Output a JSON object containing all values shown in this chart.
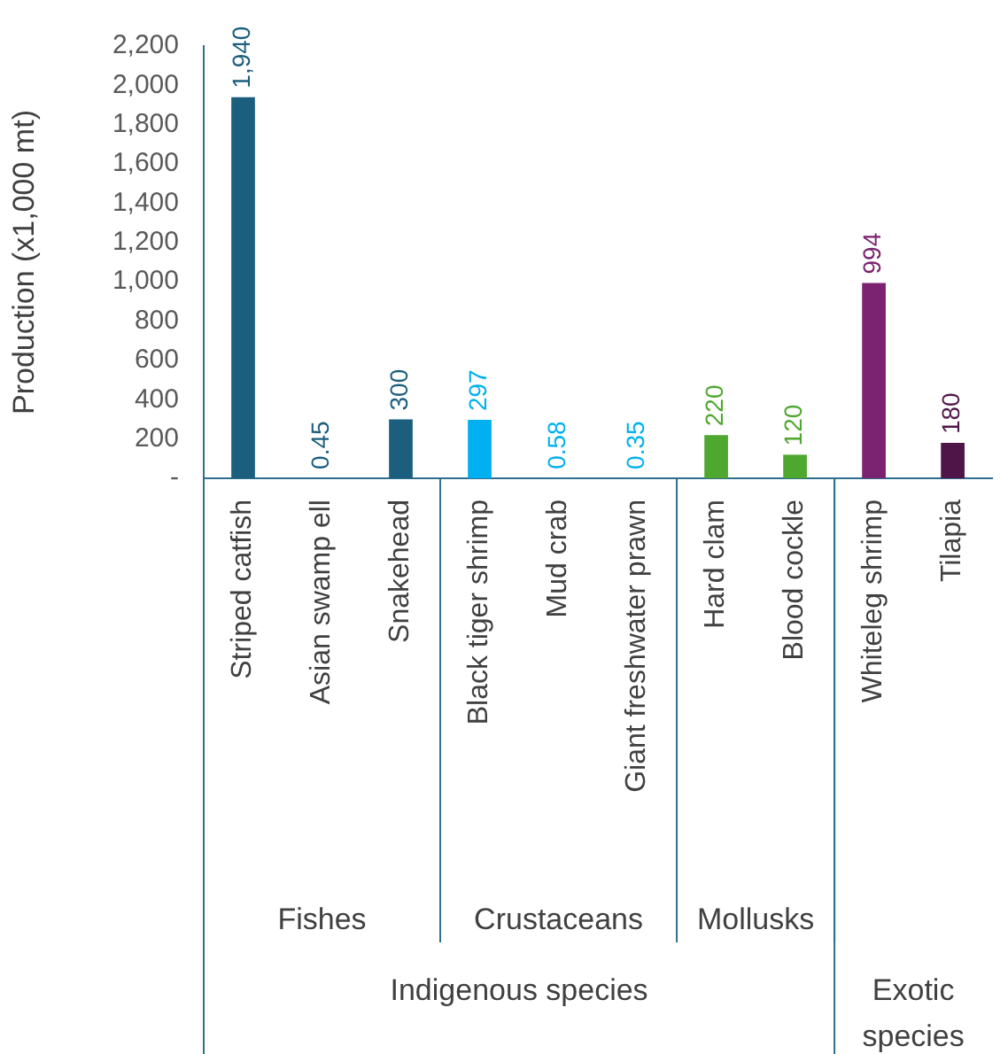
{
  "chart_data": {
    "type": "bar",
    "ylabel": "Production (x1,000 mt)",
    "categories": [
      "Striped catfish",
      "Asian swamp ell",
      "Snakehead",
      "Black tiger shrimp",
      "Mud crab",
      "Giant freshwater prawn",
      "Hard clam",
      "Blood cockle",
      "Whiteleg shrimp",
      "Tilapia"
    ],
    "values": [
      1940,
      0.45,
      300,
      297,
      0.58,
      0.35,
      220,
      120,
      994,
      180
    ],
    "colors": [
      "#1b5e7e",
      "#1b5e7e",
      "#1b5e7e",
      "#00b0f0",
      "#00b0f0",
      "#00b0f0",
      "#4ea72e",
      "#4ea72e",
      "#7b2270",
      "#501548"
    ],
    "ylim": [
      0,
      2200
    ],
    "yticks": [
      {
        "value": 0,
        "label": "-"
      },
      {
        "value": 200,
        "label": "200"
      },
      {
        "value": 400,
        "label": "400"
      },
      {
        "value": 600,
        "label": "600"
      },
      {
        "value": 800,
        "label": "800"
      },
      {
        "value": 1000,
        "label": "1,000"
      },
      {
        "value": 1200,
        "label": "1,200"
      },
      {
        "value": 1400,
        "label": "1,400"
      },
      {
        "value": 1600,
        "label": "1,600"
      },
      {
        "value": 1800,
        "label": "1,800"
      },
      {
        "value": 2000,
        "label": "2,000"
      },
      {
        "value": 2200,
        "label": "2,200"
      }
    ],
    "value_labels": [
      "1,940",
      "0.45",
      "300",
      "297",
      "0.58",
      "0.35",
      "220",
      "120",
      "994",
      "180"
    ],
    "grid": false,
    "legend": false,
    "annotations": [
      "Fishes",
      "Crustaceans",
      "Mollusks",
      "Indigenous species",
      "Exotic species"
    ]
  }
}
